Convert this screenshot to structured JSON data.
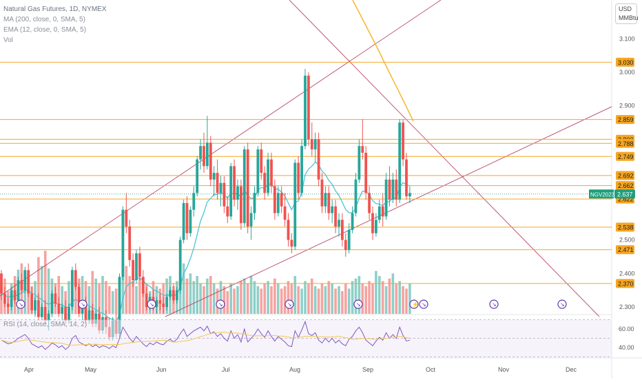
{
  "legend": {
    "title": "Natural Gas Futures, 1D, NYMEX",
    "ma": "MA (200, close, 0, SMA, 5)",
    "ema": "EMA (12, close, 0, SMA, 5)",
    "vol": "Vol"
  },
  "rsi_label": "RSI (14, close, SMA, 14, 2)",
  "unit": {
    "line1": "USD",
    "line2": "MMBtu"
  },
  "colors": {
    "up": "#26a69a",
    "down": "#ef5350",
    "vol_up": "#8fcfc8",
    "vol_down": "#f5a3a1",
    "hline": "#f5a623",
    "trend": "#b43c5c",
    "ema": "#4fc3d6",
    "ma": "#f7b731",
    "rsi": "#7e57c2",
    "rsi_ma": "#f2c94c",
    "current_label": "#1e9e7d"
  },
  "chart_data": {
    "type": "candlestick",
    "title": "Natural Gas Futures, 1D, NYMEX",
    "y_unit": "USD / MMBtu",
    "ylim": [
      2.28,
      3.15
    ],
    "y_ticks": [
      "3.100",
      "3.000",
      "2.900",
      "2.500",
      "2.400",
      "2.300"
    ],
    "x_ticks": [
      "Apr",
      "May",
      "Jun",
      "Jul",
      "Aug",
      "Sep",
      "Oct",
      "Nov",
      "Dec"
    ],
    "horizontal_levels": [
      "3.030",
      "2.859",
      "2.800",
      "2.788",
      "2.749",
      "2.692",
      "2.662",
      "2.622",
      "2.538",
      "2.471",
      "2.370"
    ],
    "current": {
      "symbol": "NGV2023",
      "price": "2.637"
    },
    "rsi": {
      "ticks": [
        "60.00",
        "40.00"
      ],
      "ylim": [
        30,
        70
      ]
    },
    "candles": [
      [
        2.4,
        2.41,
        2.32,
        2.34
      ],
      [
        2.34,
        2.36,
        2.3,
        2.31
      ],
      [
        2.31,
        2.33,
        2.28,
        2.3
      ],
      [
        2.3,
        2.36,
        2.29,
        2.35
      ],
      [
        2.35,
        2.37,
        2.31,
        2.32
      ],
      [
        2.32,
        2.39,
        2.31,
        2.38
      ],
      [
        2.38,
        2.4,
        2.34,
        2.35
      ],
      [
        2.35,
        2.42,
        2.34,
        2.41
      ],
      [
        2.41,
        2.43,
        2.33,
        2.34
      ],
      [
        2.34,
        2.36,
        2.28,
        2.29
      ],
      [
        2.29,
        2.33,
        2.27,
        2.32
      ],
      [
        2.32,
        2.34,
        2.26,
        2.27
      ],
      [
        2.27,
        2.31,
        2.26,
        2.3
      ],
      [
        2.3,
        2.32,
        2.25,
        2.26
      ],
      [
        2.26,
        2.29,
        2.23,
        2.28
      ],
      [
        2.28,
        2.35,
        2.27,
        2.34
      ],
      [
        2.34,
        2.36,
        2.3,
        2.31
      ],
      [
        2.31,
        2.33,
        2.27,
        2.28
      ],
      [
        2.28,
        2.31,
        2.26,
        2.3
      ],
      [
        2.3,
        2.32,
        2.25,
        2.26
      ],
      [
        2.26,
        2.31,
        2.25,
        2.3
      ],
      [
        2.3,
        2.42,
        2.29,
        2.41
      ],
      [
        2.41,
        2.43,
        2.35,
        2.36
      ],
      [
        2.36,
        2.37,
        2.27,
        2.28
      ],
      [
        2.28,
        2.32,
        2.26,
        2.31
      ],
      [
        2.31,
        2.33,
        2.25,
        2.26
      ],
      [
        2.26,
        2.3,
        2.25,
        2.29
      ],
      [
        2.29,
        2.31,
        2.24,
        2.25
      ],
      [
        2.25,
        2.29,
        2.24,
        2.28
      ],
      [
        2.28,
        2.3,
        2.22,
        2.23
      ],
      [
        2.23,
        2.28,
        2.22,
        2.27
      ],
      [
        2.27,
        2.29,
        2.22,
        2.24
      ],
      [
        2.24,
        2.27,
        2.2,
        2.21
      ],
      [
        2.21,
        2.27,
        2.2,
        2.26
      ],
      [
        2.26,
        2.28,
        2.21,
        2.22
      ],
      [
        2.22,
        2.4,
        2.21,
        2.39
      ],
      [
        2.39,
        2.6,
        2.38,
        2.59
      ],
      [
        2.59,
        2.64,
        2.52,
        2.54
      ],
      [
        2.54,
        2.56,
        2.42,
        2.44
      ],
      [
        2.44,
        2.46,
        2.36,
        2.38
      ],
      [
        2.38,
        2.47,
        2.37,
        2.46
      ],
      [
        2.46,
        2.48,
        2.38,
        2.39
      ],
      [
        2.39,
        2.41,
        2.33,
        2.34
      ],
      [
        2.34,
        2.36,
        2.29,
        2.3
      ],
      [
        2.3,
        2.34,
        2.29,
        2.33
      ],
      [
        2.33,
        2.35,
        2.29,
        2.3
      ],
      [
        2.3,
        2.33,
        2.28,
        2.32
      ],
      [
        2.32,
        2.34,
        2.29,
        2.31
      ],
      [
        2.31,
        2.33,
        2.28,
        2.3
      ],
      [
        2.3,
        2.34,
        2.29,
        2.33
      ],
      [
        2.33,
        2.36,
        2.32,
        2.35
      ],
      [
        2.35,
        2.37,
        2.31,
        2.32
      ],
      [
        2.32,
        2.36,
        2.31,
        2.35
      ],
      [
        2.35,
        2.51,
        2.34,
        2.5
      ],
      [
        2.5,
        2.62,
        2.49,
        2.61
      ],
      [
        2.61,
        2.63,
        2.5,
        2.52
      ],
      [
        2.52,
        2.6,
        2.51,
        2.59
      ],
      [
        2.59,
        2.66,
        2.57,
        2.64
      ],
      [
        2.64,
        2.75,
        2.63,
        2.74
      ],
      [
        2.74,
        2.8,
        2.71,
        2.78
      ],
      [
        2.78,
        2.82,
        2.7,
        2.72
      ],
      [
        2.72,
        2.87,
        2.71,
        2.79
      ],
      [
        2.79,
        2.81,
        2.66,
        2.68
      ],
      [
        2.68,
        2.72,
        2.63,
        2.7
      ],
      [
        2.7,
        2.74,
        2.62,
        2.64
      ],
      [
        2.64,
        2.69,
        2.6,
        2.67
      ],
      [
        2.67,
        2.69,
        2.58,
        2.6
      ],
      [
        2.6,
        2.63,
        2.55,
        2.57
      ],
      [
        2.57,
        2.73,
        2.56,
        2.72
      ],
      [
        2.72,
        2.74,
        2.6,
        2.62
      ],
      [
        2.62,
        2.68,
        2.59,
        2.66
      ],
      [
        2.66,
        2.68,
        2.53,
        2.55
      ],
      [
        2.55,
        2.78,
        2.54,
        2.77
      ],
      [
        2.77,
        2.79,
        2.52,
        2.54
      ],
      [
        2.54,
        2.6,
        2.5,
        2.58
      ],
      [
        2.58,
        2.66,
        2.56,
        2.64
      ],
      [
        2.64,
        2.78,
        2.63,
        2.77
      ],
      [
        2.77,
        2.79,
        2.68,
        2.7
      ],
      [
        2.7,
        2.72,
        2.62,
        2.64
      ],
      [
        2.64,
        2.76,
        2.63,
        2.74
      ],
      [
        2.74,
        2.76,
        2.64,
        2.66
      ],
      [
        2.66,
        2.68,
        2.56,
        2.58
      ],
      [
        2.58,
        2.66,
        2.57,
        2.64
      ],
      [
        2.64,
        2.66,
        2.58,
        2.6
      ],
      [
        2.6,
        2.64,
        2.54,
        2.56
      ],
      [
        2.56,
        2.58,
        2.48,
        2.5
      ],
      [
        2.5,
        2.52,
        2.46,
        2.48
      ],
      [
        2.48,
        2.74,
        2.47,
        2.73
      ],
      [
        2.73,
        2.75,
        2.62,
        2.64
      ],
      [
        2.64,
        2.8,
        2.63,
        2.78
      ],
      [
        2.78,
        3.01,
        2.77,
        2.99
      ],
      [
        2.99,
        3.0,
        2.78,
        2.8
      ],
      [
        2.8,
        2.85,
        2.75,
        2.77
      ],
      [
        2.77,
        2.82,
        2.73,
        2.8
      ],
      [
        2.8,
        2.82,
        2.66,
        2.68
      ],
      [
        2.68,
        2.7,
        2.58,
        2.6
      ],
      [
        2.6,
        2.66,
        2.58,
        2.64
      ],
      [
        2.64,
        2.66,
        2.56,
        2.58
      ],
      [
        2.58,
        2.62,
        2.55,
        2.6
      ],
      [
        2.6,
        2.62,
        2.52,
        2.54
      ],
      [
        2.54,
        2.58,
        2.51,
        2.56
      ],
      [
        2.56,
        2.58,
        2.48,
        2.5
      ],
      [
        2.5,
        2.52,
        2.45,
        2.47
      ],
      [
        2.47,
        2.55,
        2.46,
        2.53
      ],
      [
        2.53,
        2.6,
        2.52,
        2.58
      ],
      [
        2.58,
        2.7,
        2.57,
        2.68
      ],
      [
        2.68,
        2.8,
        2.67,
        2.78
      ],
      [
        2.78,
        2.86,
        2.74,
        2.76
      ],
      [
        2.76,
        2.78,
        2.62,
        2.64
      ],
      [
        2.64,
        2.66,
        2.56,
        2.58
      ],
      [
        2.58,
        2.6,
        2.5,
        2.52
      ],
      [
        2.52,
        2.58,
        2.51,
        2.56
      ],
      [
        2.56,
        2.62,
        2.55,
        2.6
      ],
      [
        2.6,
        2.64,
        2.54,
        2.57
      ],
      [
        2.57,
        2.7,
        2.56,
        2.68
      ],
      [
        2.68,
        2.72,
        2.6,
        2.62
      ],
      [
        2.62,
        2.7,
        2.61,
        2.68
      ],
      [
        2.68,
        2.71,
        2.6,
        2.62
      ],
      [
        2.62,
        2.86,
        2.61,
        2.85
      ],
      [
        2.85,
        2.86,
        2.72,
        2.74
      ],
      [
        2.74,
        2.76,
        2.62,
        2.63
      ],
      [
        2.63,
        2.66,
        2.61,
        2.64
      ]
    ],
    "volume": [
      22,
      28,
      18,
      24,
      30,
      35,
      40,
      32,
      28,
      22,
      26,
      45,
      38,
      50,
      36,
      28,
      24,
      30,
      22,
      18,
      26,
      20,
      24,
      28,
      30,
      26,
      22,
      34,
      28,
      24,
      30,
      26,
      22,
      18,
      20,
      24,
      40,
      38,
      30,
      26,
      22,
      28,
      20,
      24,
      18,
      26,
      22,
      20,
      24,
      28,
      30,
      22,
      26,
      34,
      40,
      28,
      32,
      26,
      30,
      24,
      22,
      28,
      30,
      24,
      20,
      26,
      22,
      18,
      24,
      20,
      22,
      26,
      28,
      24,
      30,
      26,
      22,
      20,
      24,
      26,
      22,
      28,
      24,
      20,
      22,
      26,
      24,
      30,
      22,
      20,
      26,
      24,
      28,
      22,
      20,
      24,
      22,
      26,
      24,
      20,
      22,
      18,
      24,
      20,
      26,
      28,
      30,
      24,
      22,
      26,
      24,
      34,
      30,
      26,
      22,
      28,
      32,
      24,
      26,
      22,
      20,
      24
    ],
    "rsi_values": [
      48,
      46,
      44,
      45,
      47,
      50,
      52,
      54,
      50,
      44,
      42,
      40,
      42,
      38,
      41,
      45,
      43,
      40,
      42,
      38,
      41,
      50,
      53,
      46,
      44,
      42,
      44,
      41,
      43,
      40,
      42,
      41,
      39,
      42,
      40,
      50,
      62,
      56,
      50,
      46,
      52,
      48,
      44,
      41,
      45,
      43,
      46,
      44,
      43,
      47,
      49,
      46,
      49,
      55,
      60,
      52,
      55,
      58,
      60,
      62,
      58,
      63,
      55,
      57,
      52,
      55,
      50,
      47,
      58,
      50,
      54,
      46,
      60,
      46,
      50,
      54,
      60,
      55,
      51,
      58,
      52,
      47,
      52,
      49,
      46,
      42,
      41,
      58,
      51,
      59,
      68,
      55,
      53,
      56,
      48,
      45,
      50,
      46,
      50,
      45,
      48,
      44,
      42,
      49,
      52,
      58,
      62,
      56,
      48,
      45,
      42,
      47,
      51,
      48,
      56,
      50,
      54,
      50,
      62,
      53,
      47,
      48
    ]
  }
}
